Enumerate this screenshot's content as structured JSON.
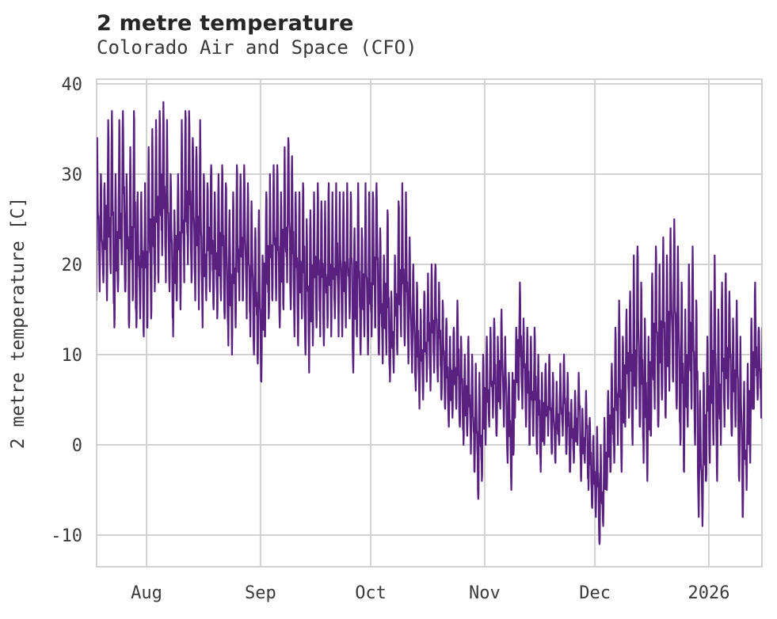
{
  "header": {
    "title": "2 metre temperature",
    "subtitle": "Colorado Air and Space (CFO)"
  },
  "chart_data": {
    "type": "line",
    "title": "2 metre temperature",
    "subtitle": "Colorado Air and Space (CFO)",
    "xlabel": "",
    "ylabel": "2 metre temperature [C]",
    "legend_position": "none",
    "grid": true,
    "y_ticks": [
      40,
      30,
      20,
      10,
      0,
      -10
    ],
    "ylim": [
      -13.5,
      40.5
    ],
    "x_tick_labels": [
      "Aug",
      "Sep",
      "Oct",
      "Nov",
      "Dec",
      "2026"
    ],
    "x_tick_day_offsets": [
      14,
      45,
      75,
      106,
      136,
      167
    ],
    "x_range": {
      "start": "2025-07-18",
      "end": "2026-01-15"
    },
    "series": [
      {
        "name": "2 metre temperature",
        "color": "#5a2080",
        "sampling": "daily min/max envelope read from plot, diurnal cycle between them",
        "start_date": "2025-07-18",
        "daily_min": [
          16,
          17,
          18,
          16,
          19,
          13,
          17,
          20,
          17,
          13,
          16,
          13,
          14,
          12,
          13,
          14,
          17,
          18,
          21,
          18,
          17,
          12,
          16,
          15,
          18,
          20,
          18,
          16,
          15,
          13,
          16,
          17,
          15,
          14,
          16,
          14,
          11,
          10,
          13,
          16,
          16,
          14,
          12,
          10,
          9,
          7,
          12,
          14,
          16,
          16,
          13,
          15,
          18,
          15,
          12,
          11,
          14,
          10,
          8,
          11,
          13,
          12,
          11,
          13,
          12,
          14,
          12,
          12,
          13,
          14,
          8,
          12,
          10,
          12,
          10,
          12,
          13,
          10,
          9,
          10,
          7,
          8,
          10,
          12,
          11,
          9,
          8,
          6,
          4,
          5,
          7,
          6,
          8,
          7,
          5,
          4,
          2,
          3,
          4,
          2,
          0,
          1,
          -1,
          -3,
          -6,
          -4,
          0,
          2,
          3,
          1,
          4,
          2,
          -2,
          -5,
          3,
          5,
          4,
          2,
          0,
          1,
          -1,
          -3,
          0,
          1,
          -1,
          -2,
          0,
          1,
          -1,
          -3,
          -2,
          0,
          -4,
          -2,
          -5,
          -7,
          -8,
          -11,
          -9,
          -5,
          -3,
          -2,
          0,
          -3,
          2,
          3,
          0,
          4,
          2,
          -2,
          -4,
          1,
          4,
          2,
          5,
          3,
          6,
          7,
          4,
          0,
          -3,
          2,
          4,
          0,
          -8,
          -9,
          -4,
          -2,
          0,
          -4,
          0,
          2,
          4,
          1,
          2,
          -4,
          -8,
          -5,
          -2,
          4,
          5,
          3
        ],
        "daily_max": [
          34,
          30,
          29,
          36,
          37,
          30,
          36,
          37,
          30,
          33,
          37,
          28,
          28,
          29,
          33,
          35,
          36,
          37,
          38,
          36,
          30,
          26,
          30,
          36,
          37,
          37,
          34,
          33,
          36,
          30,
          29,
          31,
          28,
          30,
          31,
          29,
          26,
          28,
          31,
          30,
          31,
          29,
          27,
          24,
          26,
          21,
          28,
          30,
          31,
          31,
          28,
          33,
          34,
          32,
          28,
          28,
          29,
          25,
          26,
          28,
          29,
          27,
          27,
          29,
          28,
          29,
          28,
          28,
          29,
          28,
          24,
          29,
          24,
          29,
          28,
          28,
          29,
          24,
          21,
          26,
          17,
          21,
          27,
          29,
          28,
          23,
          20,
          18,
          15,
          17,
          19,
          20,
          20,
          18,
          16,
          14,
          12,
          13,
          16,
          12,
          10,
          12,
          10,
          9,
          8,
          10,
          12,
          13,
          14,
          12,
          15,
          12,
          8,
          8,
          13,
          18,
          14,
          13,
          12,
          13,
          10,
          8,
          9,
          10,
          8,
          7,
          9,
          10,
          8,
          5,
          6,
          8,
          4,
          6,
          3,
          1,
          2,
          0,
          3,
          6,
          9,
          13,
          16,
          12,
          15,
          17,
          21,
          22,
          18,
          14,
          12,
          19,
          22,
          20,
          23,
          21,
          24,
          25,
          22,
          18,
          15,
          20,
          22,
          16,
          6,
          8,
          12,
          17,
          21,
          15,
          18,
          19,
          17,
          14,
          16,
          12,
          7,
          9,
          14,
          18,
          13,
          13
        ]
      }
    ]
  },
  "style": {
    "background": "#ffffff",
    "line_color": "#5a2080",
    "grid_color": "#d2d2d2",
    "text_color": "#3a3a3a",
    "title_color": "#262626"
  }
}
